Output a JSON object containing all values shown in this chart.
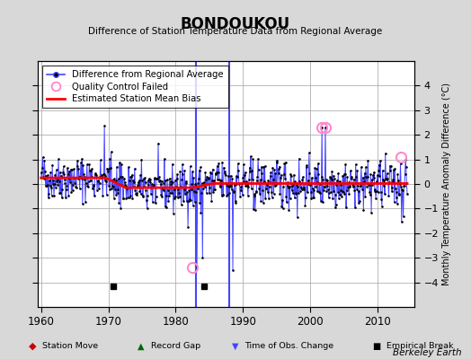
{
  "title": "BONDOUKOU",
  "subtitle": "Difference of Station Temperature Data from Regional Average",
  "ylabel": "Monthly Temperature Anomaly Difference (°C)",
  "xlim": [
    1959.5,
    2015.5
  ],
  "ylim": [
    -5,
    5
  ],
  "yticks": [
    -4,
    -3,
    -2,
    -1,
    0,
    1,
    2,
    3,
    4
  ],
  "xticks": [
    1960,
    1970,
    1980,
    1990,
    2000,
    2010
  ],
  "bg_color": "#d8d8d8",
  "plot_bg_color": "#ffffff",
  "grid_color": "#b0b0b0",
  "line_color": "#4444ff",
  "marker_color": "#000000",
  "bias_color": "#ff0000",
  "qc_color": "#ff88cc",
  "berkeley_earth_text": "Berkeley Earth",
  "empirical_breaks": [
    1970.75,
    1984.25
  ],
  "obs_change_times": [
    1983.0,
    1988.0
  ],
  "qc_failed_times": [
    1982.5,
    2001.75,
    2002.25,
    2013.5
  ],
  "qc_failed_values": [
    -3.4,
    2.3,
    2.3,
    1.1
  ],
  "seed": 42
}
